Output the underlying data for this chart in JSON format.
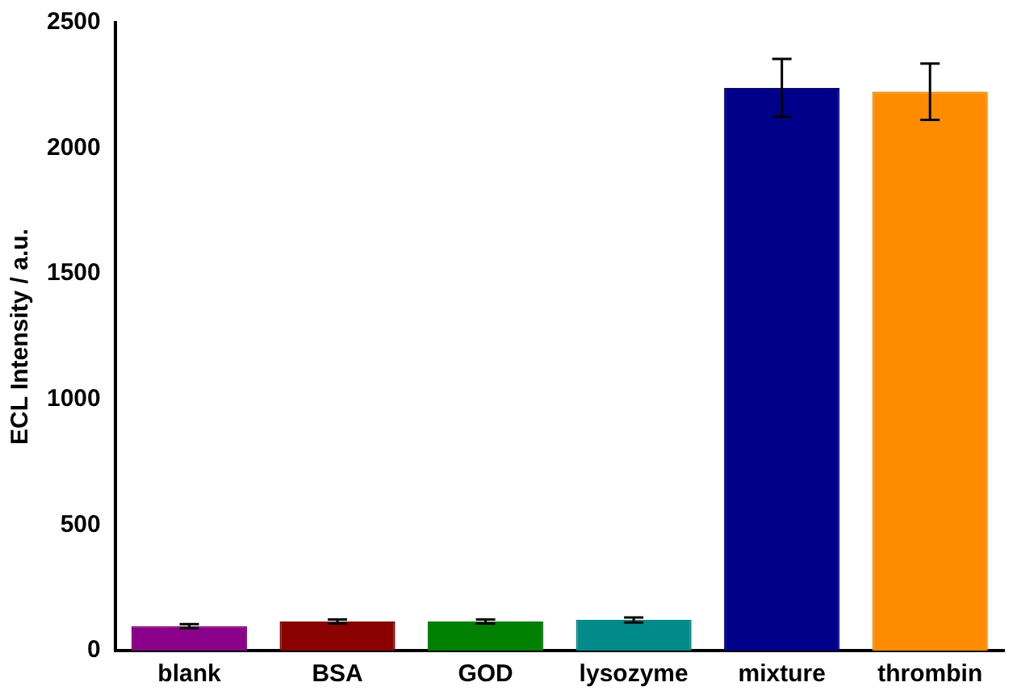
{
  "chart_data": {
    "type": "bar",
    "ylabel": "ECL Intensity / a.u.",
    "categories": [
      "blank",
      "BSA",
      "GOD",
      "lysozyme",
      "mixture",
      "thrombin"
    ],
    "values": [
      97,
      116,
      116,
      122,
      2240,
      2225
    ],
    "colors": [
      "#8b008b",
      "#8b0000",
      "#008000",
      "#008b8b",
      "#00008b",
      "#ff8c00"
    ],
    "errors": [
      8,
      8,
      8,
      10,
      115,
      112
    ],
    "ylim": [
      0,
      2500
    ],
    "yticks": [
      0,
      500,
      1000,
      1500,
      2000,
      2500
    ],
    "grid": false,
    "legend": false
  }
}
